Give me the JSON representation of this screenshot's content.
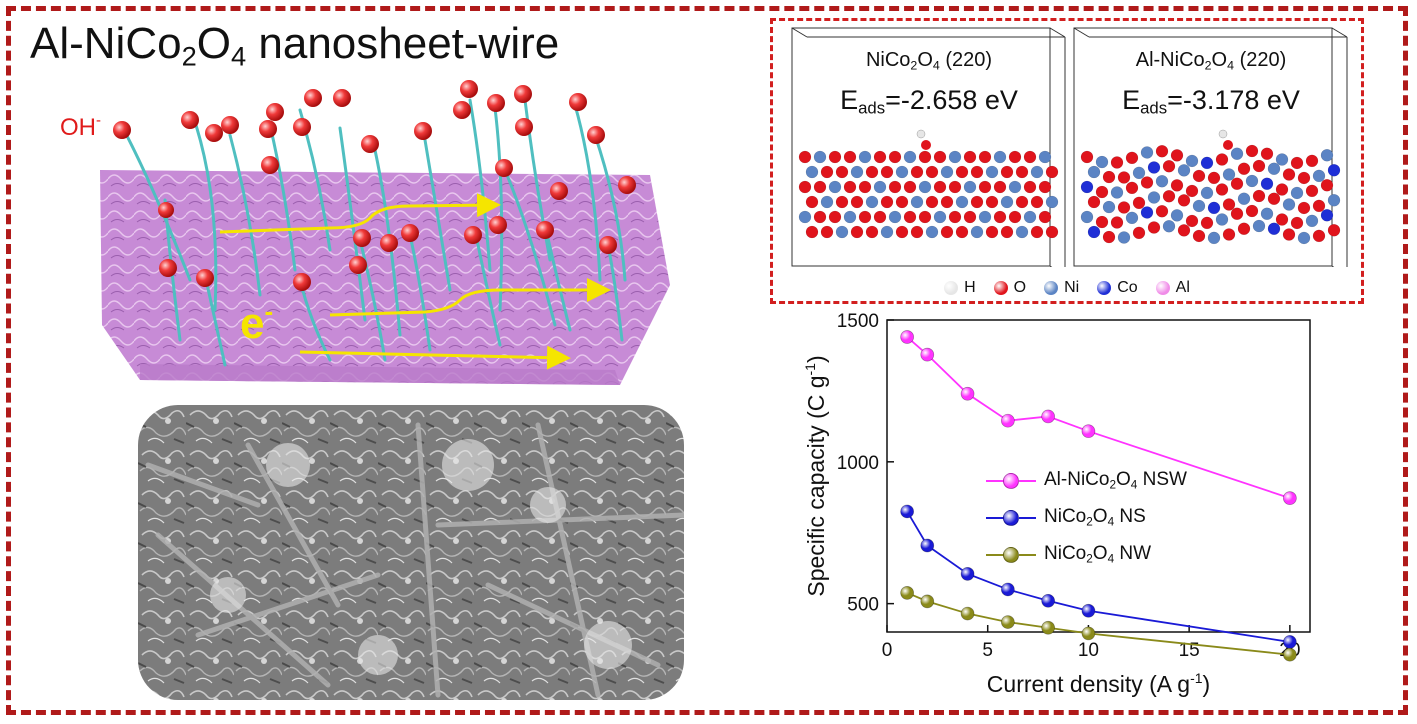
{
  "title": {
    "main": "Al-NiCo",
    "sub1": "2",
    "mid": "O",
    "sub2": "4",
    "rest": " nanosheet-wire"
  },
  "scheme": {
    "oh_label": "OH",
    "oh_charge": "-",
    "e_label": "e",
    "e_charge": "-"
  },
  "dft": {
    "panels": [
      {
        "formula": "NiCo",
        "s1": "2",
        "o": "O",
        "s2": "4",
        "plane": " (220)",
        "e_label": "E",
        "e_sub": "ads",
        "e_value": "=-2.658 eV"
      },
      {
        "formula": "Al-NiCo",
        "s1": "2",
        "o": "O",
        "s2": "4",
        "plane": " (220)",
        "e_label": "E",
        "e_sub": "ads",
        "e_value": "=-3.178 eV"
      }
    ],
    "legend": [
      {
        "label": "H",
        "color": "#e6e6e6"
      },
      {
        "label": "O",
        "color": "#e0141c"
      },
      {
        "label": "Ni",
        "color": "#5b84c4"
      },
      {
        "label": "Co",
        "color": "#1f2fd6"
      },
      {
        "label": "Al",
        "color": "#f08ce8"
      }
    ]
  },
  "colors": {
    "frame": "#b01a1a",
    "dft_frame": "#d21f1f",
    "sheet": "#c78bd6",
    "wire": "#4fbfc0",
    "arrow": "#f5e500"
  },
  "chart_data": {
    "type": "line",
    "xlabel": "Current density (A g",
    "xlabel_sup": "-1",
    "xlabel_end": ")",
    "ylabel": "Specific capacity (C g",
    "ylabel_sup": "-1",
    "ylabel_end": ")",
    "xlim": [
      0,
      21
    ],
    "ylim": [
      400,
      1500
    ],
    "xticks": [
      0,
      5,
      10,
      15,
      20
    ],
    "yticks": [
      500,
      1000,
      1500
    ],
    "legend_position": "center-right",
    "series": [
      {
        "name": "Al-NiCo2O4 NSW",
        "name_parts": [
          "Al-NiCo",
          "2",
          "O",
          "4",
          " NSW"
        ],
        "color": "#ff33ff",
        "x": [
          1,
          2,
          4,
          6,
          8,
          10,
          20
        ],
        "y": [
          1440,
          1378,
          1240,
          1145,
          1160,
          1108,
          872
        ]
      },
      {
        "name": "NiCo2O4 NS",
        "name_parts": [
          "NiCo",
          "2",
          "O",
          "4",
          " NS"
        ],
        "color": "#1a1ad6",
        "x": [
          1,
          2,
          4,
          6,
          8,
          10,
          20
        ],
        "y": [
          825,
          705,
          605,
          550,
          510,
          475,
          365
        ]
      },
      {
        "name": "NiCo2O4 NW",
        "name_parts": [
          "NiCo",
          "2",
          "O",
          "4",
          " NW"
        ],
        "color": "#8a8a1a",
        "x": [
          1,
          2,
          4,
          6,
          8,
          10,
          20
        ],
        "y": [
          538,
          508,
          465,
          435,
          415,
          395,
          320
        ]
      }
    ]
  }
}
